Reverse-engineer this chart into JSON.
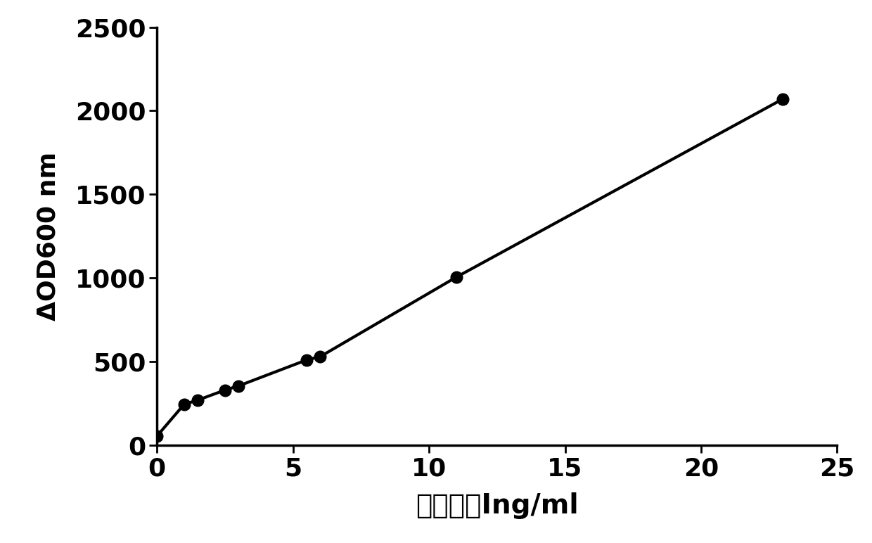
{
  "x": [
    0,
    1,
    1.5,
    2.5,
    3,
    5.5,
    6,
    11,
    23
  ],
  "y": [
    55,
    245,
    270,
    330,
    355,
    510,
    530,
    1005,
    2070
  ],
  "line_color": "#000000",
  "marker_color": "#000000",
  "marker_size": 12,
  "linewidth": 3.0,
  "xlabel": "肌钒蛋白Ing/ml",
  "ylabel": "ΔOD600 nm",
  "xlim": [
    0,
    25
  ],
  "ylim": [
    0,
    2500
  ],
  "xticks": [
    0,
    5,
    10,
    15,
    20,
    25
  ],
  "yticks": [
    0,
    500,
    1000,
    1500,
    2000,
    2500
  ],
  "xlabel_fontsize": 28,
  "ylabel_fontsize": 26,
  "tick_fontsize": 26,
  "background_color": "#ffffff",
  "spine_linewidth": 2.5
}
